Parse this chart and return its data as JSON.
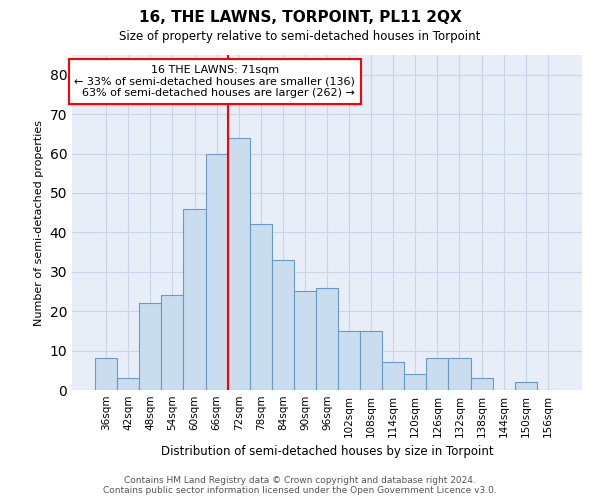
{
  "title": "16, THE LAWNS, TORPOINT, PL11 2QX",
  "subtitle": "Size of property relative to semi-detached houses in Torpoint",
  "xlabel": "Distribution of semi-detached houses by size in Torpoint",
  "ylabel": "Number of semi-detached properties",
  "categories": [
    "36sqm",
    "42sqm",
    "48sqm",
    "54sqm",
    "60sqm",
    "66sqm",
    "72sqm",
    "78sqm",
    "84sqm",
    "90sqm",
    "96sqm",
    "102sqm",
    "108sqm",
    "114sqm",
    "120sqm",
    "126sqm",
    "132sqm",
    "138sqm",
    "144sqm",
    "150sqm",
    "156sqm"
  ],
  "values": [
    8,
    3,
    22,
    24,
    46,
    60,
    64,
    42,
    33,
    25,
    26,
    15,
    15,
    7,
    4,
    8,
    8,
    3,
    0,
    2,
    0
  ],
  "bar_color": "#c9ddef",
  "bar_edge_color": "#6699cc",
  "highlight_label": "16 THE LAWNS: 71sqm",
  "smaller_pct": "33%",
  "smaller_n": 136,
  "larger_pct": "63%",
  "larger_n": 262,
  "vline_x": 5.5,
  "ylim": [
    0,
    85
  ],
  "yticks": [
    0,
    10,
    20,
    30,
    40,
    50,
    60,
    70,
    80
  ],
  "grid_color": "#c8d4e8",
  "background_color": "#e8eef8",
  "footer_line1": "Contains HM Land Registry data © Crown copyright and database right 2024.",
  "footer_line2": "Contains public sector information licensed under the Open Government Licence v3.0."
}
